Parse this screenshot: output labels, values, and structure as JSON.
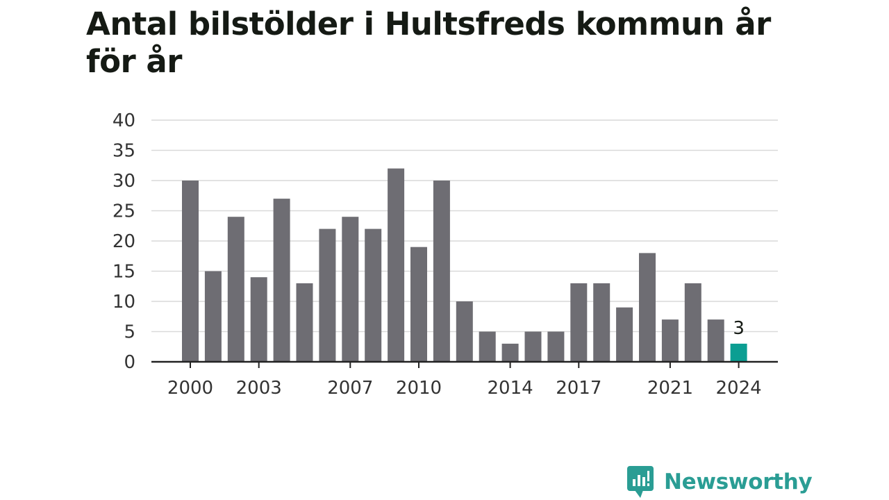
{
  "header": {
    "title": "Antal bilstölder i Hultsfreds kommun år för år"
  },
  "branding": {
    "name": "Newsworthy",
    "color": "#2a9d94",
    "icon": "bar-chart-speech-bubble-icon"
  },
  "chart_data": {
    "type": "bar",
    "x": [
      2000,
      2001,
      2002,
      2003,
      2004,
      2005,
      2006,
      2007,
      2008,
      2009,
      2010,
      2011,
      2012,
      2013,
      2014,
      2015,
      2016,
      2017,
      2018,
      2019,
      2020,
      2021,
      2022,
      2023,
      2024
    ],
    "values": [
      30,
      15,
      24,
      14,
      27,
      13,
      22,
      24,
      22,
      32,
      19,
      30,
      10,
      5,
      3,
      5,
      5,
      13,
      13,
      9,
      18,
      7,
      13,
      7,
      3
    ],
    "x_tick_labels": [
      "2000",
      "2003",
      "2007",
      "2010",
      "2014",
      "2017",
      "2021",
      "2024"
    ],
    "y_ticks": [
      0,
      5,
      10,
      15,
      20,
      25,
      30,
      35,
      40
    ],
    "ylim": [
      0,
      40
    ],
    "highlight_index": 24,
    "highlight_label": "3",
    "colors": {
      "bar": "#6e6d73",
      "highlight": "#0b9e92",
      "grid": "#d9d9d9",
      "axis": "#222222"
    },
    "grid": true,
    "legend": "none",
    "xlabel": "",
    "ylabel": ""
  }
}
